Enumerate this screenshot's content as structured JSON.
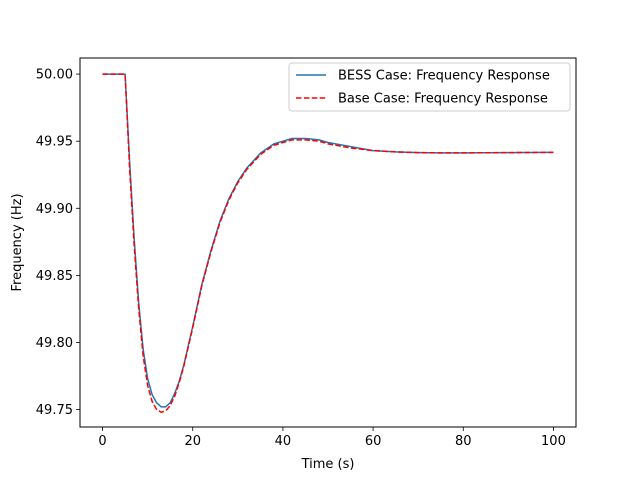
{
  "chart_data": {
    "type": "line",
    "title": "",
    "xlabel": "Time (s)",
    "ylabel": "Frequency (Hz)",
    "xlim": [
      -5,
      105
    ],
    "ylim": [
      49.737,
      50.012
    ],
    "xticks": [
      0,
      20,
      40,
      60,
      80,
      100
    ],
    "xtick_labels": [
      "0",
      "20",
      "40",
      "60",
      "80",
      "100"
    ],
    "yticks": [
      49.75,
      49.8,
      49.85,
      49.9,
      49.95,
      50.0
    ],
    "ytick_labels": [
      "49.75",
      "49.80",
      "49.85",
      "49.90",
      "49.95",
      "50.00"
    ],
    "grid": false,
    "legend_position": "top-right",
    "series": [
      {
        "name": "BESS Case: Frequency Response",
        "color": "#1f77b4",
        "style": "solid",
        "x": [
          0,
          2,
          4,
          5,
          6,
          7,
          8,
          9,
          10,
          11,
          12,
          13,
          14,
          15,
          16,
          17,
          18,
          20,
          22,
          24,
          26,
          28,
          30,
          32,
          35,
          38,
          40,
          42,
          45,
          48,
          50,
          55,
          60,
          65,
          70,
          75,
          80,
          85,
          90,
          95,
          100
        ],
        "y": [
          50.0,
          50.0,
          50.0,
          50.0,
          49.935,
          49.878,
          49.83,
          49.795,
          49.773,
          49.761,
          49.755,
          49.752,
          49.752,
          49.755,
          49.762,
          49.771,
          49.783,
          49.812,
          49.843,
          49.868,
          49.89,
          49.907,
          49.92,
          49.93,
          49.941,
          49.948,
          49.95,
          49.952,
          49.952,
          49.951,
          49.949,
          49.946,
          49.943,
          49.942,
          49.9415,
          49.9413,
          49.9413,
          49.9414,
          49.9415,
          49.9416,
          49.9417
        ]
      },
      {
        "name": "Base Case: Frequency Response",
        "color": "#ff0000",
        "style": "dashed",
        "x": [
          0,
          2,
          4,
          5,
          6,
          7,
          8,
          9,
          10,
          11,
          12,
          13,
          14,
          15,
          16,
          17,
          18,
          20,
          22,
          24,
          26,
          28,
          30,
          32,
          35,
          38,
          40,
          42,
          45,
          48,
          50,
          55,
          60,
          65,
          70,
          75,
          80,
          85,
          90,
          95,
          100
        ],
        "y": [
          50.0,
          50.0,
          50.0,
          50.0,
          49.93,
          49.873,
          49.826,
          49.79,
          49.768,
          49.756,
          49.75,
          49.748,
          49.749,
          49.753,
          49.76,
          49.77,
          49.782,
          49.811,
          49.842,
          49.867,
          49.889,
          49.906,
          49.919,
          49.929,
          49.94,
          49.947,
          49.949,
          49.951,
          49.951,
          49.95,
          49.948,
          49.945,
          49.943,
          49.942,
          49.9415,
          49.9413,
          49.9413,
          49.9414,
          49.9415,
          49.9416,
          49.9417
        ]
      }
    ]
  }
}
